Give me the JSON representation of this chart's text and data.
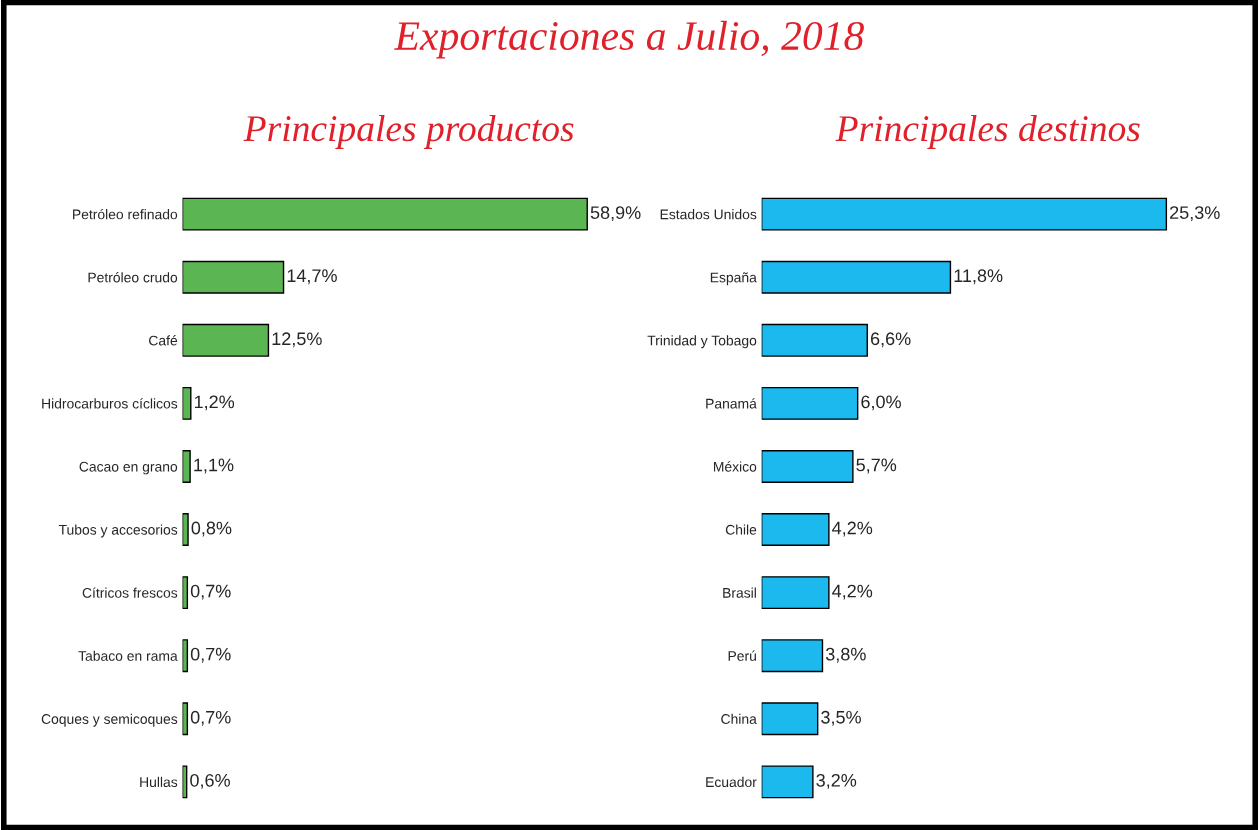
{
  "chart_data": [
    {
      "type": "bar",
      "orientation": "horizontal",
      "title": "Exportaciones a Julio, 2018",
      "subtitle": "Principales productos",
      "data_labels": true,
      "categories": [
        "Petróleo refinado",
        "Petróleo crudo",
        "Café",
        "Hidrocarburos cíclicos",
        "Cacao en grano",
        "Tubos y accesorios",
        "Cítricos frescos",
        "Tabaco en rama",
        "Coques y semicoques",
        "Hullas"
      ],
      "values": [
        58.9,
        14.7,
        12.5,
        1.2,
        1.1,
        0.8,
        0.7,
        0.7,
        0.7,
        0.6
      ],
      "value_labels": [
        "58,9%",
        "14,7%",
        "12,5%",
        "1,2%",
        "1,1%",
        "0,8%",
        "0,7%",
        "0,7%",
        "0,7%",
        "0,6%"
      ],
      "color": "#5ab552",
      "grid": false,
      "legend": false
    },
    {
      "type": "bar",
      "orientation": "horizontal",
      "title": "Principales destinos",
      "data_labels": true,
      "categories": [
        "Estados Unidos",
        "España",
        "Trinidad y Tobago",
        "Panamá",
        "México",
        "Chile",
        "Brasil",
        "Perú",
        "China",
        "Ecuador"
      ],
      "values": [
        25.3,
        11.8,
        6.6,
        6.0,
        5.7,
        4.2,
        4.2,
        3.8,
        3.5,
        3.2
      ],
      "value_labels": [
        "25,3%",
        "11,8%",
        "6,6%",
        "6,0%",
        "5,7%",
        "4,2%",
        "4,2%",
        "3,8%",
        "3,5%",
        "3,2%"
      ],
      "color": "#1bb9ee",
      "grid": false,
      "legend": false
    }
  ]
}
